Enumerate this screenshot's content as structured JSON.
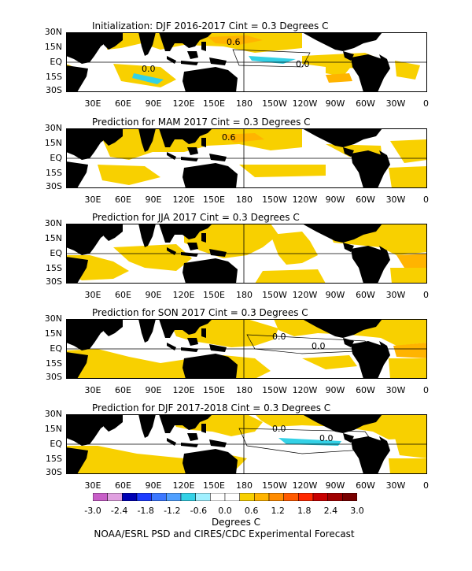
{
  "panels": [
    {
      "title": "Initialization: DJF 2016-2017  Cint = 0.3 Degrees C",
      "labels": [
        {
          "text": "0.6"
        },
        {
          "text": "0.0"
        },
        {
          "text": "0.0"
        }
      ]
    },
    {
      "title": "Prediction for MAM 2017  Cint = 0.3 Degrees C",
      "labels": [
        {
          "text": "0.6"
        }
      ]
    },
    {
      "title": "Prediction for JJA 2017  Cint = 0.3 Degrees C",
      "labels": []
    },
    {
      "title": "Prediction for SON 2017  Cint = 0.3 Degrees C",
      "labels": [
        {
          "text": "0.0"
        },
        {
          "text": "0.0"
        }
      ]
    },
    {
      "title": "Prediction for DJF 2017-2018  Cint = 0.3 Degrees C",
      "labels": [
        {
          "text": "0.0"
        },
        {
          "text": "0.0"
        }
      ]
    }
  ],
  "lat_labels": [
    "30N",
    "15N",
    "EQ",
    "15S",
    "30S"
  ],
  "lon_labels": [
    "30E",
    "60E",
    "90E",
    "120E",
    "150E",
    "180",
    "150W",
    "120W",
    "90W",
    "60W",
    "30W",
    "0"
  ],
  "colorbar": {
    "colors": [
      "#c85ec8",
      "#e0a0e0",
      "#0000b4",
      "#1e3cff",
      "#3c78ff",
      "#50a0ff",
      "#33d1e6",
      "#a0f0ff",
      "#ffffff",
      "#ffffff",
      "#f8d000",
      "#ffb400",
      "#ff8c00",
      "#ff5a00",
      "#ff2800",
      "#c80000",
      "#a00000",
      "#780000"
    ],
    "ticks": [
      "-3.0",
      "-2.4",
      "-1.8",
      "-1.2",
      "-0.6",
      "0.0",
      "0.6",
      "1.2",
      "1.8",
      "2.4",
      "3.0"
    ],
    "units": "Degrees C"
  },
  "credit": "NOAA/ESRL PSD and CIRES/CDC Experimental Forecast"
}
